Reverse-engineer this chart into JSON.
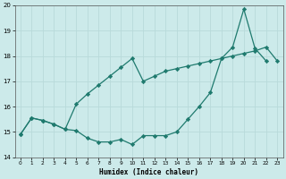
{
  "xlabel": "Humidex (Indice chaleur)",
  "xlim": [
    -0.5,
    23.5
  ],
  "ylim": [
    14,
    20
  ],
  "yticks": [
    14,
    15,
    16,
    17,
    18,
    19,
    20
  ],
  "xticks": [
    0,
    1,
    2,
    3,
    4,
    5,
    6,
    7,
    8,
    9,
    10,
    11,
    12,
    13,
    14,
    15,
    16,
    17,
    18,
    19,
    20,
    21,
    22,
    23
  ],
  "line1_x": [
    0,
    1,
    2,
    3,
    4,
    5,
    6,
    7,
    8,
    9,
    10,
    11,
    12,
    13,
    14,
    15,
    16,
    17,
    18,
    19,
    20,
    21,
    22
  ],
  "line1_y": [
    14.9,
    15.55,
    15.45,
    15.3,
    15.1,
    15.05,
    14.75,
    14.6,
    14.6,
    14.7,
    14.5,
    14.85,
    14.85,
    14.85,
    15.0,
    15.5,
    16.0,
    16.55,
    17.9,
    18.35,
    19.85,
    18.3,
    17.8
  ],
  "line2_x": [
    0,
    1,
    2,
    3,
    4,
    5,
    6,
    7,
    8,
    9,
    10,
    11,
    12,
    13,
    14,
    15,
    16,
    17,
    18,
    19,
    20,
    21,
    22,
    23
  ],
  "line2_y": [
    14.9,
    15.55,
    15.45,
    15.3,
    15.1,
    16.1,
    16.5,
    16.85,
    17.2,
    17.55,
    17.9,
    17.0,
    17.2,
    17.4,
    17.5,
    17.6,
    17.7,
    17.8,
    17.9,
    18.0,
    18.1,
    18.2,
    18.35,
    17.8
  ],
  "line_color": "#1f7a6e",
  "bg_color": "#cceaea",
  "grid_color": "#b8dada",
  "marker": "D",
  "markersize": 2.2,
  "linewidth": 0.9
}
